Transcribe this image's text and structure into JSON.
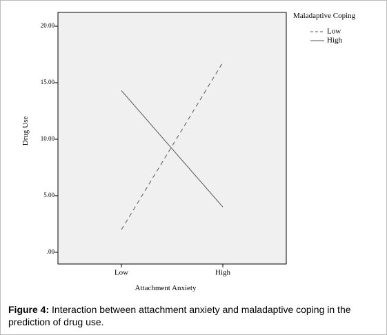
{
  "chart_data": {
    "type": "line",
    "categories": [
      "Low",
      "High"
    ],
    "series": [
      {
        "name": "Low",
        "color": "#555555",
        "dash": "6,5",
        "values": [
          2.0,
          16.8
        ]
      },
      {
        "name": "High",
        "color": "#555555",
        "dash": "none",
        "values": [
          14.3,
          4.0
        ]
      }
    ],
    "xlabel": "Attachment Anxiety",
    "ylabel": "Drug Use",
    "legend_title": "Maladaptive Coping",
    "ylim": [
      -1.04,
      21.22
    ],
    "yticks": [
      {
        "value": 0,
        "label": ".00"
      },
      {
        "value": 5,
        "label": "5.00"
      },
      {
        "value": 10,
        "label": "10.00"
      },
      {
        "value": 15,
        "label": "15.00"
      },
      {
        "value": 20,
        "label": "20.00"
      }
    ],
    "legend": "outside-right"
  },
  "caption": {
    "label": "Figure 4:",
    "text": "Interaction between attachment anxiety and maladaptive coping in the prediction of drug use."
  }
}
